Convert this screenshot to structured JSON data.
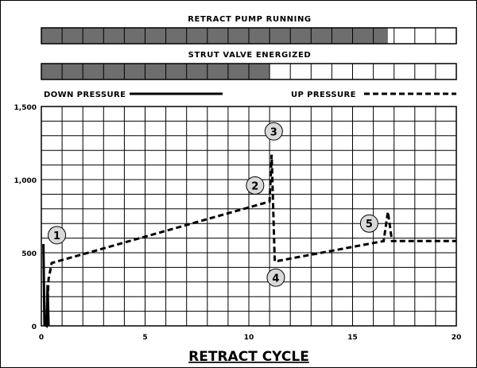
{
  "colors": {
    "bar_fill": "#6e6e6e",
    "bar_empty": "#ffffff",
    "grid": "#000000",
    "line": "#000000",
    "marker_fill": "#d9d9d9"
  },
  "bars": [
    {
      "label": "RETRACT PUMP RUNNING",
      "total_cells": 20,
      "filled_cells": 16.7
    },
    {
      "label": "STRUT VALVE ENERGIZED",
      "total_cells": 20,
      "filled_cells": 11
    }
  ],
  "chart_data": {
    "type": "line",
    "title": "",
    "xlabel": "RETRACT CYCLE",
    "ylabel": "",
    "xlim": [
      0,
      20
    ],
    "ylim": [
      0,
      1500
    ],
    "x_ticks": [
      0,
      5,
      10,
      15,
      20
    ],
    "x_tick_labels": [
      "0",
      "5",
      "10",
      "15",
      "20"
    ],
    "y_ticks": [
      0,
      500,
      1000,
      1500
    ],
    "y_tick_labels": [
      "0",
      "500",
      "1,000",
      "1,500"
    ],
    "x_grid_step": 1,
    "y_grid_step": 100,
    "grid": true,
    "legend_position": "top",
    "series": [
      {
        "name": "DOWN PRESSURE",
        "style": "solid",
        "points": [
          [
            0.1,
            560
          ],
          [
            0.15,
            10
          ],
          [
            0.25,
            0
          ],
          [
            0.3,
            280
          ],
          [
            0.35,
            0
          ]
        ]
      },
      {
        "name": "UP PRESSURE",
        "style": "dashed",
        "points": [
          [
            0.25,
            0
          ],
          [
            0.35,
            320
          ],
          [
            0.5,
            430
          ],
          [
            11.0,
            850
          ],
          [
            11.1,
            1170
          ],
          [
            11.25,
            440
          ],
          [
            16.5,
            580
          ],
          [
            16.7,
            780
          ],
          [
            16.9,
            580
          ],
          [
            20,
            580
          ]
        ]
      }
    ],
    "annotations": [
      {
        "text": "1",
        "x": 0.75,
        "y": 620
      },
      {
        "text": "2",
        "x": 10.3,
        "y": 960
      },
      {
        "text": "3",
        "x": 11.2,
        "y": 1330
      },
      {
        "text": "4",
        "x": 11.3,
        "y": 330
      },
      {
        "text": "5",
        "x": 15.8,
        "y": 700
      }
    ]
  }
}
